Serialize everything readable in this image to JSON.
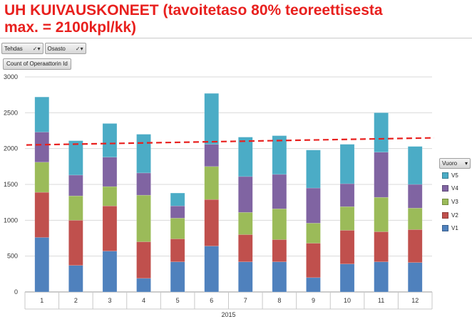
{
  "title": {
    "line1": "UH KUIVAUSKONEET (tavoitetaso 80% teoreettisesta",
    "line2": "max. = 2100kpl/kk)"
  },
  "filters": [
    {
      "label": "Tehdas",
      "icon": "filter-dropdown-icon"
    },
    {
      "label": "Osasto",
      "icon": "filter-dropdown-icon"
    }
  ],
  "value_field": "Count of Operaattorin Id",
  "legend_title": "Vuoro",
  "chart_data": {
    "type": "bar",
    "stacked": true,
    "categories": [
      "1",
      "2",
      "3",
      "4",
      "5",
      "6",
      "7",
      "8",
      "9",
      "10",
      "11",
      "12"
    ],
    "xlabel": "2015",
    "ylim": [
      0,
      3000
    ],
    "yticks": [
      0,
      500,
      1000,
      1500,
      2000,
      2500,
      3000
    ],
    "grid": true,
    "legend_position": "right",
    "target_line": {
      "value": 2100,
      "color": "#e8201e",
      "style": "dashed"
    },
    "series": [
      {
        "name": "V1",
        "color": "#4f81bd",
        "values": [
          760,
          370,
          570,
          190,
          420,
          640,
          420,
          420,
          200,
          390,
          420,
          410
        ]
      },
      {
        "name": "V2",
        "color": "#c0504d",
        "values": [
          630,
          630,
          630,
          510,
          320,
          650,
          380,
          310,
          480,
          470,
          420,
          460
        ]
      },
      {
        "name": "V3",
        "color": "#9bbb59",
        "values": [
          420,
          340,
          270,
          650,
          290,
          460,
          310,
          430,
          280,
          330,
          480,
          300
        ]
      },
      {
        "name": "V4",
        "color": "#8064a2",
        "values": [
          420,
          290,
          410,
          310,
          170,
          310,
          500,
          480,
          490,
          320,
          630,
          330
        ]
      },
      {
        "name": "V5",
        "color": "#4bacc6",
        "values": [
          490,
          480,
          470,
          540,
          180,
          710,
          550,
          540,
          530,
          550,
          550,
          530
        ]
      }
    ]
  }
}
